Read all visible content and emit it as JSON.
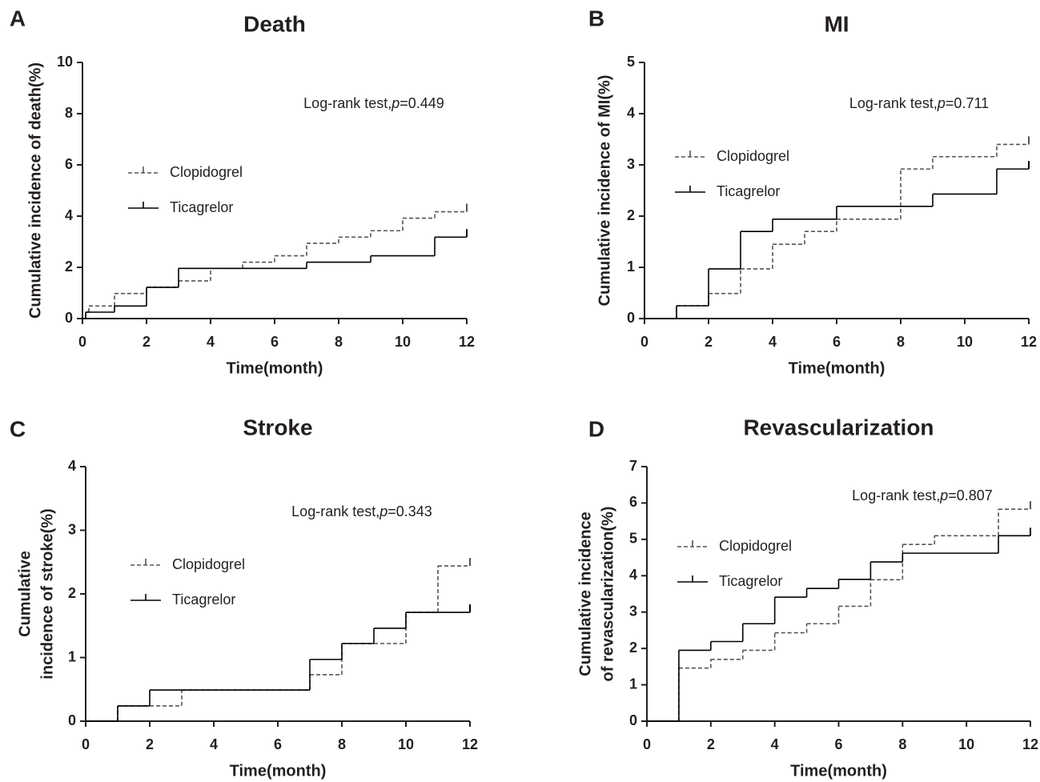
{
  "chart_data": [
    {
      "type": "line",
      "step": "post",
      "panel_label": "A",
      "title": "Death",
      "xlabel": "Time(month)",
      "ylabel": [
        "Cumulative incidence of death(%)"
      ],
      "annotation": [
        "Log-rank test,",
        "p",
        "=0.449"
      ],
      "x": [
        0,
        0.1,
        0.2,
        1,
        2,
        3,
        4,
        5,
        6,
        7,
        8,
        9,
        10,
        11,
        12
      ],
      "series": [
        {
          "name": "Clopidogrel",
          "color": "#555555",
          "line_style": "dashed",
          "values": [
            0,
            0.25,
            0.49,
            0.98,
            1.22,
            1.47,
            1.96,
            2.2,
            2.45,
            2.94,
            3.18,
            3.43,
            3.92,
            4.17,
            4.17
          ]
        },
        {
          "name": "Ticagrelor",
          "color": "#000000",
          "line_style": "solid",
          "values": [
            0,
            0.25,
            0.25,
            0.49,
            1.22,
            1.96,
            1.96,
            1.96,
            1.96,
            2.2,
            2.2,
            2.45,
            2.45,
            3.18,
            3.18
          ]
        }
      ],
      "xlim": [
        0,
        12
      ],
      "xticks": [
        0,
        2,
        4,
        6,
        8,
        10,
        12
      ],
      "ylim": [
        0,
        10
      ],
      "yticks": [
        0,
        2,
        4,
        6,
        8,
        10
      ]
    },
    {
      "type": "line",
      "step": "post",
      "panel_label": "B",
      "title": "MI",
      "xlabel": "Time(month)",
      "ylabel": [
        "Cumulative incidence of MI(%)"
      ],
      "annotation": [
        "Log-rank test,",
        "p",
        "=0.711"
      ],
      "x": [
        0,
        1,
        2,
        3,
        4,
        5,
        6,
        7,
        8,
        9,
        10,
        11,
        12
      ],
      "series": [
        {
          "name": "Clopidogrel",
          "color": "#555555",
          "line_style": "dashed",
          "values": [
            0,
            0.25,
            0.49,
            0.97,
            1.45,
            1.7,
            1.94,
            1.94,
            2.92,
            3.16,
            3.16,
            3.4,
            3.4
          ]
        },
        {
          "name": "Ticagrelor",
          "color": "#000000",
          "line_style": "solid",
          "values": [
            0,
            0.25,
            0.97,
            1.7,
            1.94,
            1.94,
            2.19,
            2.19,
            2.19,
            2.43,
            2.43,
            2.92,
            2.92
          ]
        }
      ],
      "xlim": [
        0,
        12
      ],
      "xticks": [
        0,
        2,
        4,
        6,
        8,
        10,
        12
      ],
      "ylim": [
        0,
        5
      ],
      "yticks": [
        0,
        1,
        2,
        3,
        4,
        5
      ]
    },
    {
      "type": "line",
      "step": "post",
      "panel_label": "C",
      "title": "Stroke",
      "xlabel": "Time(month)",
      "ylabel": [
        "Cumulative",
        "incidence of stroke(%)"
      ],
      "annotation": [
        "Log-rank test,",
        "p",
        "=0.343"
      ],
      "x": [
        0,
        1,
        2,
        3,
        4,
        5,
        6,
        7,
        8,
        9,
        10,
        11,
        12
      ],
      "series": [
        {
          "name": "Clopidogrel",
          "color": "#555555",
          "line_style": "dashed",
          "values": [
            0,
            0.24,
            0.24,
            0.49,
            0.49,
            0.49,
            0.49,
            0.73,
            1.22,
            1.22,
            1.71,
            2.44,
            2.44
          ]
        },
        {
          "name": "Ticagrelor",
          "color": "#000000",
          "line_style": "solid",
          "values": [
            0,
            0.24,
            0.49,
            0.49,
            0.49,
            0.49,
            0.49,
            0.97,
            1.22,
            1.46,
            1.71,
            1.71,
            1.71
          ]
        }
      ],
      "xlim": [
        0,
        12
      ],
      "xticks": [
        0,
        2,
        4,
        6,
        8,
        10,
        12
      ],
      "ylim": [
        0,
        4
      ],
      "yticks": [
        0,
        1,
        2,
        3,
        4
      ]
    },
    {
      "type": "line",
      "step": "post",
      "panel_label": "D",
      "title": "Revascularization",
      "xlabel": "Time(month)",
      "ylabel": [
        "Cumulative incidence",
        "of revascularization(%)"
      ],
      "annotation": [
        "Log-rank test,",
        "p",
        "=0.807"
      ],
      "x": [
        0,
        1,
        2,
        3,
        4,
        5,
        6,
        7,
        8,
        9,
        10,
        11,
        12
      ],
      "series": [
        {
          "name": "Clopidogrel",
          "color": "#555555",
          "line_style": "dashed",
          "values": [
            0,
            1.46,
            1.7,
            1.95,
            2.43,
            2.68,
            3.16,
            3.89,
            4.86,
            5.1,
            5.1,
            5.83,
            5.83
          ]
        },
        {
          "name": "Ticagrelor",
          "color": "#000000",
          "line_style": "solid",
          "values": [
            0,
            1.95,
            2.19,
            2.68,
            3.41,
            3.65,
            3.9,
            4.38,
            4.62,
            4.62,
            4.62,
            5.1,
            5.1
          ]
        }
      ],
      "xlim": [
        0,
        12
      ],
      "xticks": [
        0,
        2,
        4,
        6,
        8,
        10,
        12
      ],
      "ylim": [
        0,
        7
      ],
      "yticks": [
        0,
        1,
        2,
        3,
        4,
        5,
        6,
        7
      ]
    }
  ]
}
